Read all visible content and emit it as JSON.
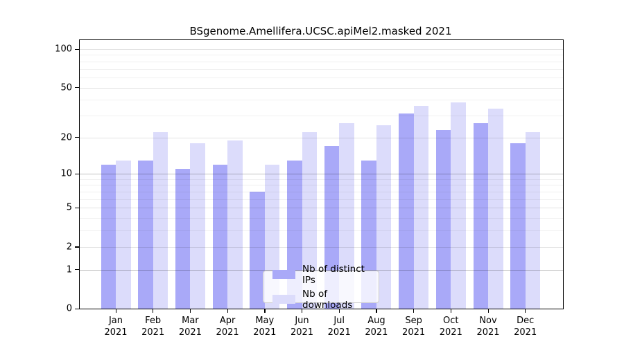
{
  "chart_data": {
    "type": "bar",
    "title": "BSgenome.Amellifera.UCSC.apiMel2.masked 2021",
    "categories": [
      "Jan",
      "Feb",
      "Mar",
      "Apr",
      "May",
      "Jun",
      "Jul",
      "Aug",
      "Sep",
      "Oct",
      "Nov",
      "Dec"
    ],
    "year_label": "2021",
    "series": [
      {
        "name": "Nb of distinct IPs",
        "color": "#a9a9f8",
        "values": [
          12,
          13,
          11,
          12,
          7,
          13,
          17,
          13,
          31,
          23,
          26,
          18
        ]
      },
      {
        "name": "Nb of downloads",
        "color": "#dcdcfb",
        "values": [
          13,
          22,
          18,
          19,
          12,
          22,
          26,
          25,
          36,
          38,
          34,
          22
        ]
      }
    ],
    "xlabel": "",
    "ylabel": "",
    "y_axis": {
      "scale": "log1p",
      "major_ticks": [
        0,
        1,
        2,
        5,
        10,
        20,
        50,
        100
      ],
      "minor_gridlines": [
        3,
        4,
        6,
        7,
        8,
        9,
        30,
        40,
        60,
        70,
        80,
        90
      ],
      "ylim": [
        0,
        115
      ]
    },
    "grid": "on",
    "legend_position": "bottom-center",
    "colors": {
      "decade_gridline": "rgba(0,0,0,0.25)",
      "major_gridline": "rgba(0,0,0,0.11)",
      "minor_gridline": "rgba(0,0,0,0.06)",
      "frame": "#000000",
      "background": "#ffffff"
    }
  }
}
